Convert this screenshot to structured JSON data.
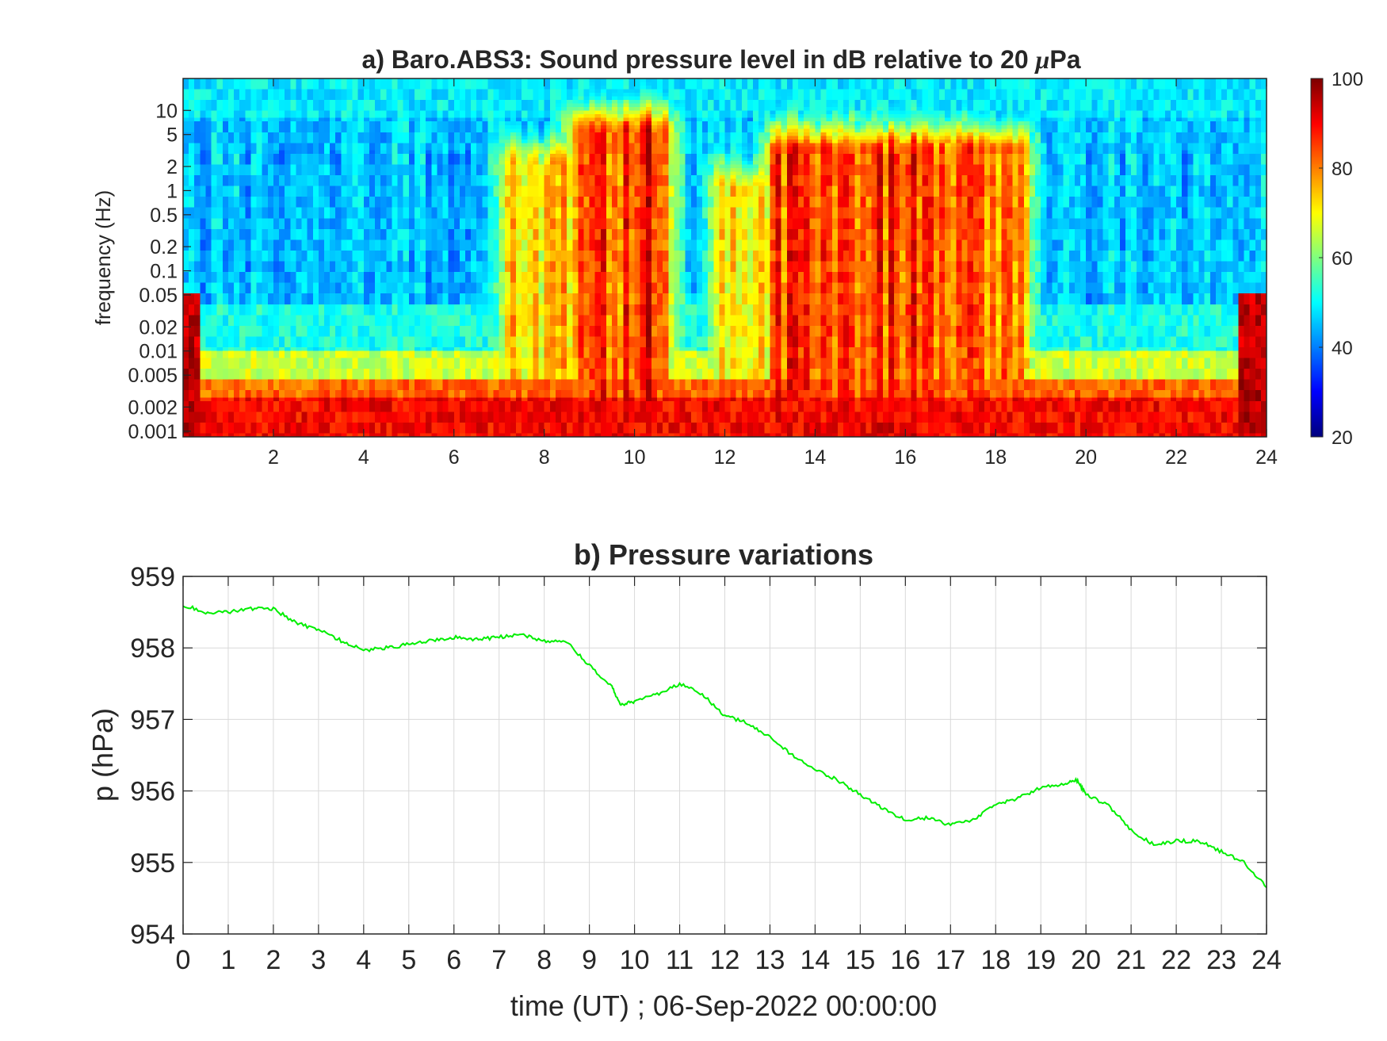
{
  "chart_data": [
    {
      "type": "heatmap",
      "title": "a) Baro.ABS3: Sound pressure level in dB relative to 20 μPa",
      "title_prefix": "a) Baro.ABS3: Sound pressure level in dB relative to 20 ",
      "title_mu": "μ",
      "title_suffix": "Pa",
      "xlabel": "",
      "ylabel": "frequency (Hz)",
      "xlim": [
        0,
        24
      ],
      "ylim": [
        0.00085,
        25
      ],
      "y_scale": "log",
      "x_ticks": [
        "2",
        "4",
        "6",
        "8",
        "10",
        "12",
        "14",
        "16",
        "18",
        "20",
        "22",
        "24"
      ],
      "y_ticks": [
        "0.001",
        "0.002",
        "0.005",
        "0.01",
        "0.02",
        "0.05",
        "0.1",
        "0.2",
        "0.5",
        "1",
        "2",
        "5",
        "10"
      ],
      "colormap": "jet",
      "colorbar": {
        "range": [
          20,
          100
        ],
        "ticks": [
          "20",
          "40",
          "60",
          "80",
          "100"
        ]
      },
      "description_of_values": "Sound pressure level (dB). Low frequencies (<0.005 Hz) ~85-95 dB all day; frequencies above ~5 Hz ~50 dB; high-level broadband bursts roughly 7.3-10.5 h and 12-18.5 h (70-90 dB up to ~2 Hz); quiet intervals 0-7 h, 10.5-12 h, 19-24 h (~30-45 dB at 0.05-2 Hz).",
      "bursts": [
        {
          "start": 7.3,
          "end": 8.6,
          "level": 78,
          "fmax": 2
        },
        {
          "start": 8.8,
          "end": 10.6,
          "level": 88,
          "fmax": 5
        },
        {
          "start": 12.0,
          "end": 13.2,
          "level": 72,
          "fmax": 1
        },
        {
          "start": 13.2,
          "end": 18.5,
          "level": 86,
          "fmax": 3
        }
      ]
    },
    {
      "type": "line",
      "title": "b) Pressure variations",
      "xlabel": "time (UT) ; 06-Sep-2022 00:00:00",
      "ylabel": "p (hPa)",
      "xlim": [
        0,
        24
      ],
      "ylim": [
        954,
        959
      ],
      "grid": true,
      "x_ticks": [
        "0",
        "1",
        "2",
        "3",
        "4",
        "5",
        "6",
        "7",
        "8",
        "9",
        "10",
        "11",
        "12",
        "13",
        "14",
        "15",
        "16",
        "17",
        "18",
        "19",
        "20",
        "21",
        "22",
        "23",
        "24"
      ],
      "y_ticks": [
        "954",
        "955",
        "956",
        "957",
        "958",
        "959"
      ],
      "series": [
        {
          "color": "#00ee00",
          "x": [
            0,
            0.5,
            1,
            1.5,
            2,
            2.5,
            3,
            3.5,
            4,
            4.5,
            5,
            5.5,
            6,
            6.5,
            7,
            7.5,
            8,
            8.5,
            9,
            9.5,
            9.7,
            10,
            10.5,
            11,
            11.5,
            12,
            12.5,
            13,
            13.5,
            14,
            14.5,
            15,
            15.5,
            16,
            16.5,
            17,
            17.5,
            18,
            18.5,
            19,
            19.5,
            19.8,
            20,
            20.5,
            21,
            21.5,
            22,
            22.5,
            23,
            23.5,
            24
          ],
          "y": [
            958.6,
            958.5,
            958.5,
            958.55,
            958.55,
            958.35,
            958.25,
            958.1,
            957.97,
            958.0,
            958.05,
            958.1,
            958.15,
            958.12,
            958.15,
            958.18,
            958.1,
            958.08,
            957.75,
            957.45,
            957.2,
            957.25,
            957.35,
            957.5,
            957.35,
            957.05,
            956.95,
            956.75,
            956.5,
            956.3,
            956.15,
            955.95,
            955.75,
            955.6,
            955.62,
            955.52,
            955.6,
            955.8,
            955.9,
            956.05,
            956.1,
            956.15,
            955.95,
            955.8,
            955.45,
            955.25,
            955.3,
            955.3,
            955.15,
            955.0,
            954.65
          ]
        }
      ]
    }
  ]
}
